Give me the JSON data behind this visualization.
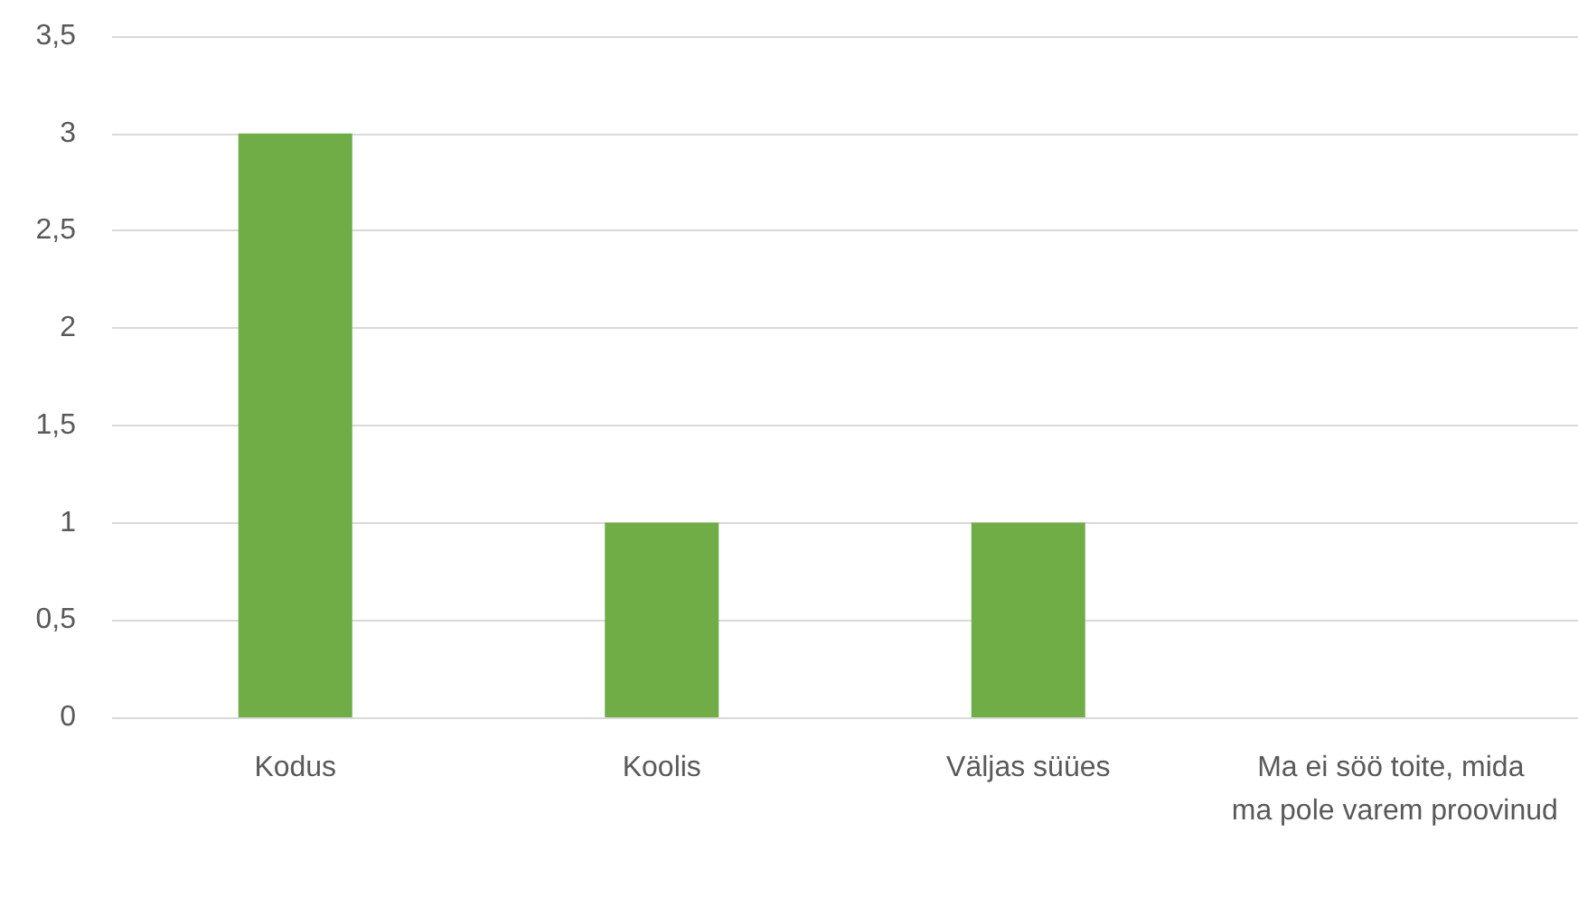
{
  "chart_data": {
    "type": "bar",
    "categories": [
      "Kodus",
      "Koolis",
      "Väljas süües",
      "Ma ei söö toite, mida ma pole varem proovinud"
    ],
    "values": [
      3,
      1,
      1,
      0
    ],
    "color": "#70ad47",
    "ylim": [
      0,
      3.5
    ],
    "yticks": [
      0,
      {
        "value": 0.5,
        "label": "0,5"
      },
      1,
      {
        "value": 1.5,
        "label": "1,5"
      },
      2,
      {
        "value": 2.5,
        "label": "2,5"
      },
      3,
      {
        "value": 3.5,
        "label": "3,5"
      }
    ],
    "grid": "y"
  }
}
